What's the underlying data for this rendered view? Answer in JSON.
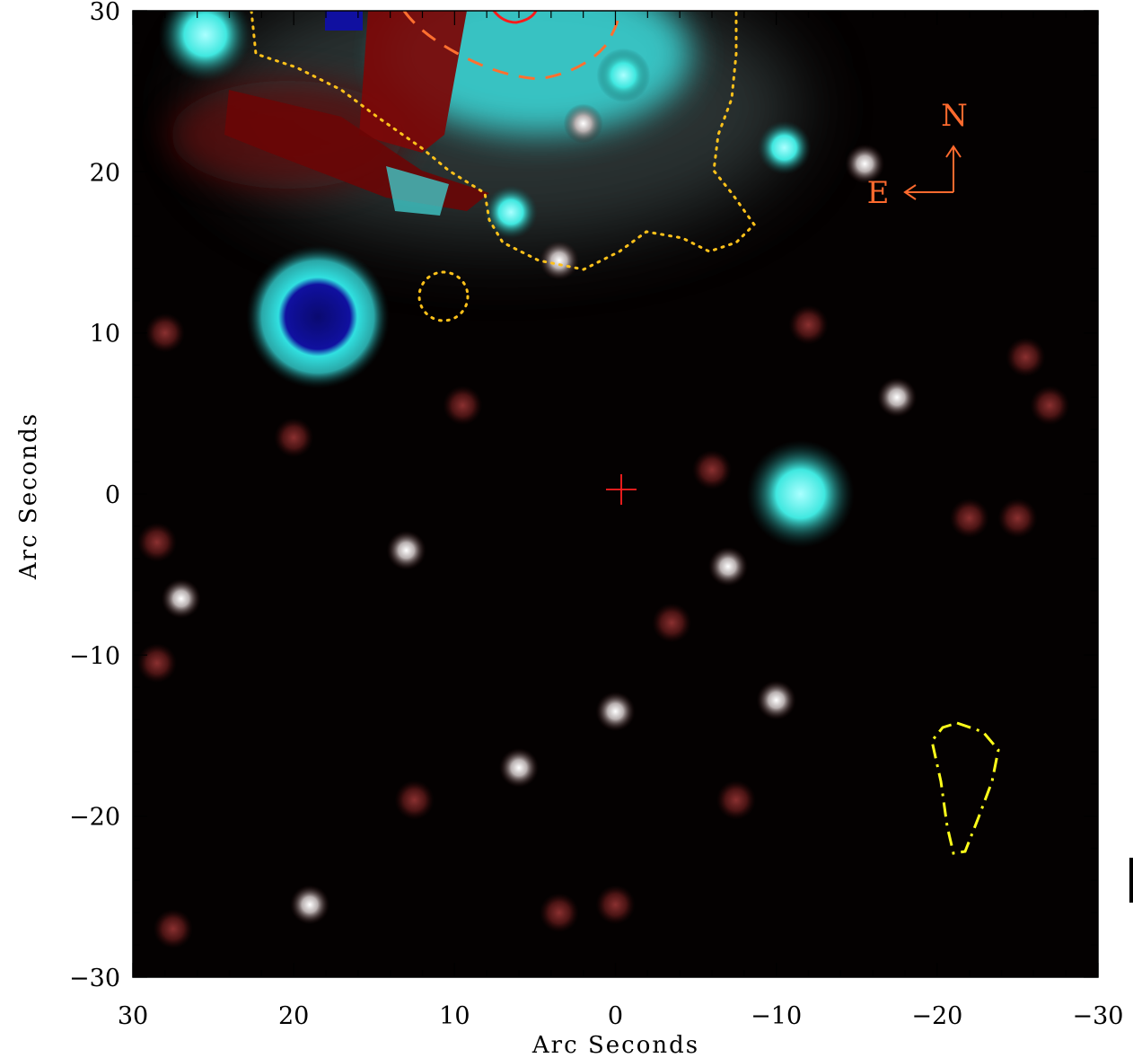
{
  "colors": {
    "compass": "#ff6a2e",
    "center_marker": "#ff2020",
    "contour_dotted": "#ffc21a",
    "contour_dashdot": "#ffff1a",
    "contour_dashed": "#ff7030",
    "contour_solid": "#ff1a1a"
  },
  "axes": {
    "xlabel": "Arc Seconds",
    "ylabel": "Arc Seconds",
    "xlim": [
      30,
      -30
    ],
    "ylim": [
      -30,
      30
    ],
    "x_ticks": [
      30,
      20,
      10,
      0,
      -10,
      -20,
      -30
    ],
    "y_ticks": [
      30,
      20,
      10,
      0,
      -10,
      -20,
      -30
    ],
    "x_tick_labels": [
      "30",
      "20",
      "10",
      "0",
      "−10",
      "−20",
      "−30"
    ],
    "y_tick_labels": [
      "30",
      "20",
      "10",
      "0",
      "−10",
      "−20",
      "−30"
    ]
  },
  "compass": {
    "north": "N",
    "east": "E"
  },
  "sources": [
    {
      "x": 25.5,
      "y": 28.5,
      "kind": "cyan-bright"
    },
    {
      "x": 6.5,
      "y": 17.5,
      "kind": "cyan"
    },
    {
      "x": -10.5,
      "y": 21.5,
      "kind": "cyan"
    },
    {
      "x": -11.5,
      "y": 0,
      "kind": "cyan-large"
    },
    {
      "x": -0.5,
      "y": 26,
      "kind": "cyan"
    },
    {
      "x": 18.5,
      "y": 11,
      "kind": "saturated"
    },
    {
      "x": -17.5,
      "y": 6,
      "kind": "white"
    },
    {
      "x": -10,
      "y": -12.8,
      "kind": "white"
    },
    {
      "x": 0,
      "y": -13.5,
      "kind": "white"
    },
    {
      "x": 13,
      "y": -3.5,
      "kind": "white"
    },
    {
      "x": 6,
      "y": -17,
      "kind": "white"
    },
    {
      "x": 3.5,
      "y": 14.5,
      "kind": "white"
    },
    {
      "x": -7,
      "y": -4.5,
      "kind": "white"
    },
    {
      "x": -15.5,
      "y": 20.5,
      "kind": "white"
    },
    {
      "x": 27,
      "y": -6.5,
      "kind": "white"
    },
    {
      "x": 19,
      "y": -25.5,
      "kind": "white"
    },
    {
      "x": 2,
      "y": 23,
      "kind": "white"
    },
    {
      "x": 28,
      "y": 10,
      "kind": "red"
    },
    {
      "x": 20,
      "y": 3.5,
      "kind": "red"
    },
    {
      "x": 12.5,
      "y": -19,
      "kind": "red"
    },
    {
      "x": 0,
      "y": -25.5,
      "kind": "red"
    },
    {
      "x": 3.5,
      "y": -26,
      "kind": "red"
    },
    {
      "x": -22,
      "y": -1.5,
      "kind": "red"
    },
    {
      "x": -25,
      "y": -1.5,
      "kind": "red"
    },
    {
      "x": -25.5,
      "y": 8.5,
      "kind": "red"
    },
    {
      "x": -12,
      "y": 10.5,
      "kind": "red"
    },
    {
      "x": 9.5,
      "y": 5.5,
      "kind": "red"
    },
    {
      "x": 28.5,
      "y": -10.5,
      "kind": "red"
    },
    {
      "x": 28.5,
      "y": -3,
      "kind": "red"
    },
    {
      "x": -27,
      "y": 5.5,
      "kind": "red"
    },
    {
      "x": -6,
      "y": 1.5,
      "kind": "red"
    },
    {
      "x": -3.5,
      "y": -8,
      "kind": "red"
    },
    {
      "x": -7.5,
      "y": -19,
      "kind": "red"
    },
    {
      "x": 27.5,
      "y": -27,
      "kind": "red"
    }
  ]
}
